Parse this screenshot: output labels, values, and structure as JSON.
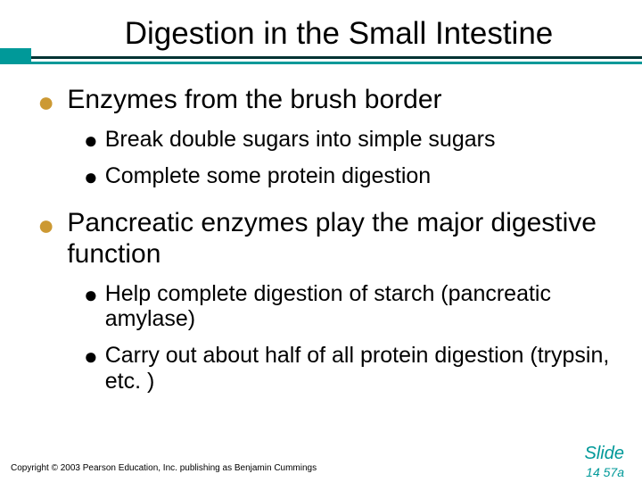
{
  "colors": {
    "dark": "#003333",
    "teal": "#009999",
    "bullet_l1": "#cc9933",
    "text": "#000000",
    "bg": "#ffffff"
  },
  "title": "Digestion in the Small Intestine",
  "bullets": {
    "item0": {
      "text": "Enzymes from the brush border",
      "sub0": "Break double sugars into simple sugars",
      "sub1": "Complete some protein digestion"
    },
    "item1": {
      "text": "Pancreatic enzymes play the major digestive function",
      "sub0": "Help complete digestion of starch (pancreatic amylase)",
      "sub1": "Carry out about half of all protein digestion (trypsin, etc. )"
    }
  },
  "copyright": "Copyright © 2003 Pearson Education, Inc. publishing as Benjamin Cummings",
  "slide_label": "Slide",
  "slide_number": "14 57a"
}
